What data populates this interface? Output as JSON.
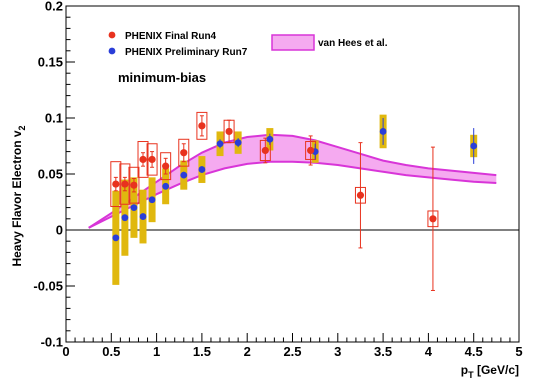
{
  "chart_data": {
    "type": "scatter",
    "title": "",
    "xlabel_main": "p",
    "xlabel_sub": "T",
    "xlabel_unit": " [GeV/c]",
    "ylabel_main": "Heavy Flavor Electron v",
    "ylabel_sub": "2",
    "xlim": [
      0,
      5
    ],
    "ylim": [
      -0.1,
      0.2
    ],
    "x_ticks": [
      0,
      0.5,
      1,
      1.5,
      2,
      2.5,
      3,
      3.5,
      4,
      4.5,
      5
    ],
    "x_tick_labels": [
      "0",
      "0.5",
      "1",
      "1.5",
      "2",
      "2.5",
      "3",
      "3.5",
      "4",
      "4.5",
      "5"
    ],
    "y_ticks": [
      -0.1,
      -0.05,
      0,
      0.05,
      0.1,
      0.15,
      0.2
    ],
    "y_tick_labels": [
      "-0.1",
      "-0.05",
      "0",
      "0.05",
      "0.1",
      "0.15",
      "0.2"
    ],
    "grid": false,
    "annotation": "minimum-bias",
    "legend": {
      "placement": "top-left",
      "entries": [
        {
          "label": "PHENIX Final Run4",
          "color": "#e8321e",
          "marker": "circle"
        },
        {
          "label": "PHENIX Preliminary Run7",
          "color": "#2a3ed8",
          "marker": "circle"
        }
      ]
    },
    "band_legend": {
      "label": "van Hees et al.",
      "fill": "#f5aaf0",
      "stroke": "#d835d8"
    },
    "colors": {
      "final": "#e8321e",
      "prelim": "#2a3ed8",
      "syst_prelim": "#e0b80e",
      "band_fill": "#f5aaf0",
      "band_edge": "#d835d8"
    },
    "band": {
      "x": [
        0.25,
        0.5,
        0.75,
        1.0,
        1.25,
        1.5,
        1.75,
        2.0,
        2.25,
        2.5,
        2.75,
        3.0,
        3.25,
        3.5,
        3.75,
        4.0,
        4.25,
        4.5,
        4.75
      ],
      "upper": [
        0.002,
        0.015,
        0.029,
        0.043,
        0.057,
        0.069,
        0.078,
        0.083,
        0.085,
        0.084,
        0.08,
        0.074,
        0.068,
        0.062,
        0.058,
        0.055,
        0.053,
        0.051,
        0.049
      ],
      "lower": [
        0.002,
        0.012,
        0.022,
        0.032,
        0.041,
        0.049,
        0.055,
        0.059,
        0.061,
        0.061,
        0.06,
        0.058,
        0.055,
        0.052,
        0.049,
        0.047,
        0.045,
        0.043,
        0.042
      ]
    },
    "series": [
      {
        "name": "PHENIX Final Run4",
        "points": [
          {
            "x": 0.55,
            "y": 0.041,
            "stat": 0.006,
            "sys": 0.02
          },
          {
            "x": 0.65,
            "y": 0.041,
            "stat": 0.006,
            "sys": 0.018
          },
          {
            "x": 0.75,
            "y": 0.04,
            "stat": 0.006,
            "sys": 0.016
          },
          {
            "x": 0.85,
            "y": 0.063,
            "stat": 0.006,
            "sys": 0.016
          },
          {
            "x": 0.95,
            "y": 0.063,
            "stat": 0.007,
            "sys": 0.014
          },
          {
            "x": 1.1,
            "y": 0.057,
            "stat": 0.007,
            "sys": 0.012
          },
          {
            "x": 1.3,
            "y": 0.069,
            "stat": 0.008,
            "sys": 0.012
          },
          {
            "x": 1.5,
            "y": 0.093,
            "stat": 0.009,
            "sys": 0.012
          },
          {
            "x": 1.8,
            "y": 0.088,
            "stat": 0.01,
            "sys": 0.01
          },
          {
            "x": 2.2,
            "y": 0.071,
            "stat": 0.011,
            "sys": 0.009
          },
          {
            "x": 2.7,
            "y": 0.071,
            "stat": 0.013,
            "sys": 0.008
          },
          {
            "x": 3.25,
            "y": 0.031,
            "stat": 0.047,
            "sys": 0.007
          },
          {
            "x": 4.05,
            "y": 0.01,
            "stat": 0.064,
            "sys": 0.007
          }
        ]
      },
      {
        "name": "PHENIX Preliminary Run7",
        "points": [
          {
            "x": 0.55,
            "y": -0.007,
            "stat": 0.002,
            "sys": 0.042
          },
          {
            "x": 0.65,
            "y": 0.011,
            "stat": 0.002,
            "sys": 0.034
          },
          {
            "x": 0.75,
            "y": 0.02,
            "stat": 0.002,
            "sys": 0.027
          },
          {
            "x": 0.85,
            "y": 0.012,
            "stat": 0.002,
            "sys": 0.024
          },
          {
            "x": 0.95,
            "y": 0.027,
            "stat": 0.002,
            "sys": 0.02
          },
          {
            "x": 1.1,
            "y": 0.039,
            "stat": 0.002,
            "sys": 0.016
          },
          {
            "x": 1.3,
            "y": 0.049,
            "stat": 0.003,
            "sys": 0.013
          },
          {
            "x": 1.5,
            "y": 0.054,
            "stat": 0.003,
            "sys": 0.012
          },
          {
            "x": 1.7,
            "y": 0.077,
            "stat": 0.004,
            "sys": 0.011
          },
          {
            "x": 1.9,
            "y": 0.078,
            "stat": 0.004,
            "sys": 0.01
          },
          {
            "x": 2.25,
            "y": 0.081,
            "stat": 0.005,
            "sys": 0.01
          },
          {
            "x": 2.75,
            "y": 0.07,
            "stat": 0.007,
            "sys": 0.01
          },
          {
            "x": 3.5,
            "y": 0.088,
            "stat": 0.012,
            "sys": 0.015
          },
          {
            "x": 4.5,
            "y": 0.075,
            "stat": 0.016,
            "sys": 0.01
          }
        ]
      }
    ]
  }
}
